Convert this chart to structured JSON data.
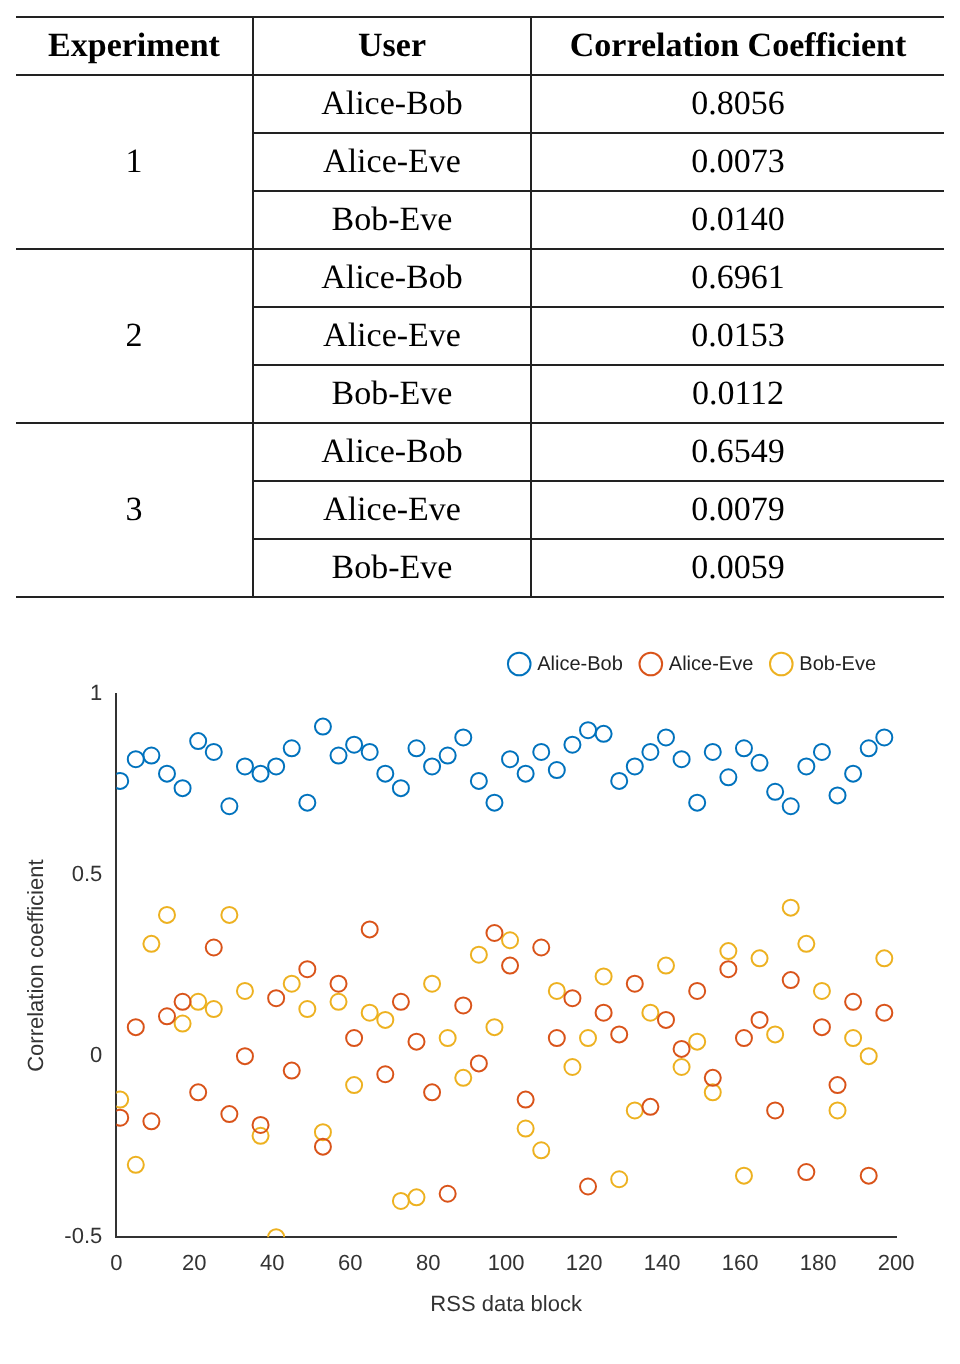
{
  "chart_data": [
    {
      "type": "other",
      "annotations": [
        "Experiment",
        "User",
        "Correlation Coefficient",
        "1",
        "2",
        "3"
      ],
      "categories": [
        "Alice-Bob",
        "Alice-Eve",
        "Bob-Eve",
        "Alice-Bob",
        "Alice-Eve",
        "Bob-Eve",
        "Alice-Bob",
        "Alice-Eve",
        "Bob-Eve"
      ],
      "values": [
        0.8056,
        0.0073,
        0.014,
        0.6961,
        0.0153,
        0.0112,
        0.6549,
        0.0079,
        0.0059
      ],
      "value_labels": [
        "0.8056",
        "0.0073",
        "0.0140",
        "0.6961",
        "0.0153",
        "0.0112",
        "0.6549",
        "0.0079",
        "0.0059"
      ]
    },
    {
      "type": "scatter",
      "xlabel": "RSS data block",
      "ylabel": "Correlation coefficient",
      "x": [
        1,
        5,
        9,
        13,
        17,
        21,
        25,
        29,
        33,
        37,
        41,
        45,
        49,
        53,
        57,
        61,
        65,
        69,
        73,
        77,
        81,
        85,
        89,
        93,
        97,
        101,
        105,
        109,
        113,
        117,
        121,
        125,
        129,
        133,
        137,
        141,
        145,
        149,
        153,
        157,
        161,
        165,
        169,
        173,
        177,
        181,
        185,
        189,
        193,
        197
      ],
      "series": [
        {
          "name": "Alice-Bob",
          "color": "#0072bd",
          "values": [
            0.76,
            0.82,
            0.83,
            0.78,
            0.74,
            0.87,
            0.84,
            0.69,
            0.8,
            0.78,
            0.8,
            0.85,
            0.7,
            0.91,
            0.83,
            0.86,
            0.84,
            0.78,
            0.74,
            0.85,
            0.8,
            0.83,
            0.88,
            0.76,
            0.7,
            0.82,
            0.78,
            0.84,
            0.79,
            0.86,
            0.9,
            0.89,
            0.76,
            0.8,
            0.84,
            0.88,
            0.82,
            0.7,
            0.84,
            0.77,
            0.85,
            0.81,
            0.73,
            0.69,
            0.8,
            0.84,
            0.72,
            0.78,
            0.85,
            0.88
          ]
        },
        {
          "name": "Alice-Eve",
          "color": "#d95319",
          "values": [
            -0.17,
            0.08,
            -0.18,
            0.11,
            0.15,
            -0.1,
            0.3,
            -0.16,
            0.0,
            -0.19,
            0.16,
            -0.04,
            0.24,
            -0.25,
            0.2,
            0.05,
            0.35,
            -0.05,
            0.15,
            0.04,
            -0.1,
            -0.38,
            0.14,
            -0.02,
            0.34,
            0.25,
            -0.12,
            0.3,
            0.05,
            0.16,
            -0.36,
            0.12,
            0.06,
            0.2,
            -0.14,
            0.1,
            0.02,
            0.18,
            -0.06,
            0.24,
            0.05,
            0.1,
            -0.15,
            0.21,
            -0.32,
            0.08,
            -0.08,
            0.15,
            -0.33,
            0.12
          ]
        },
        {
          "name": "Bob-Eve",
          "color": "#edb120",
          "values": [
            -0.12,
            -0.3,
            0.31,
            0.39,
            0.09,
            0.15,
            0.13,
            0.39,
            0.18,
            -0.22,
            -0.5,
            0.2,
            0.13,
            -0.21,
            0.15,
            -0.08,
            0.12,
            0.1,
            -0.4,
            -0.39,
            0.2,
            0.05,
            -0.06,
            0.28,
            0.08,
            0.32,
            -0.2,
            -0.26,
            0.18,
            -0.03,
            0.05,
            0.22,
            -0.34,
            -0.15,
            0.12,
            0.25,
            -0.03,
            0.04,
            -0.1,
            0.29,
            -0.33,
            0.27,
            0.06,
            0.41,
            0.31,
            0.18,
            -0.15,
            0.05,
            0.0,
            0.27
          ]
        }
      ],
      "xlim": [
        0,
        200
      ],
      "xticks": [
        0,
        20,
        40,
        60,
        80,
        100,
        120,
        140,
        160,
        180,
        200
      ],
      "ylim": [
        -0.5,
        1
      ],
      "yticks": [
        -0.5,
        0,
        0.5,
        1
      ],
      "grid": false,
      "legend": "top right",
      "marker": "circle"
    }
  ]
}
